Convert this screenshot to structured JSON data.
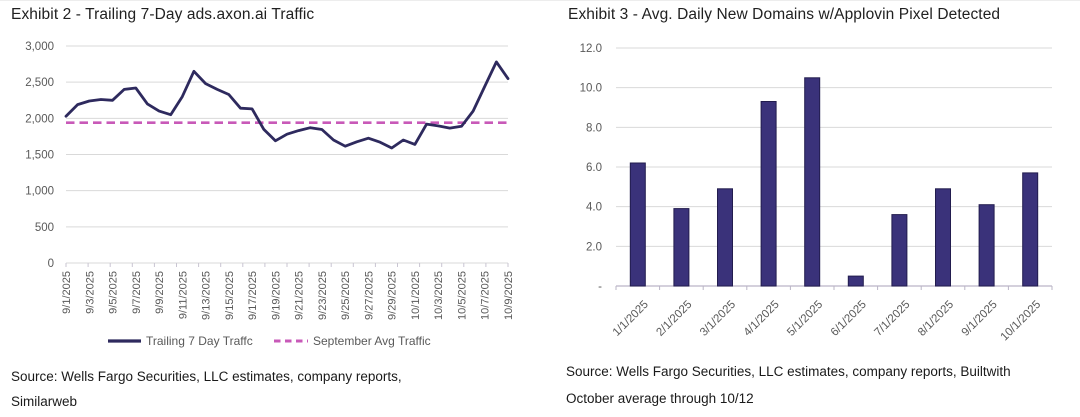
{
  "exhibit2": {
    "title": "Exhibit 2 - Trailing 7-Day ads.axon.ai Traffic",
    "source_line1": "Source: Wells Fargo Securities, LLC estimates, company reports,",
    "source_line2": "Similarweb"
  },
  "exhibit3": {
    "title": "Exhibit 3 - Avg. Daily New Domains w/Applovin Pixel Detected",
    "source_line1": "Source: Wells Fargo Securities, LLC estimates, company reports, Builtwith",
    "source_line2": "October average through 10/12"
  },
  "colors": {
    "grid": "#d9d9d9",
    "axis_text": "#595959",
    "tick": "#c9c5d2",
    "bar_axis": "#bab5c6",
    "legend_text": "#595959",
    "line_series": "#2e2a5e",
    "dashed_series": "#c859b8",
    "bar_fill": "#3a327a",
    "bar_border": "#221c4e"
  },
  "chart_data": [
    {
      "type": "line",
      "title": "Exhibit 2 - Trailing 7-Day ads.axon.ai Traffic",
      "x": [
        "9/1/2025",
        "9/2/2025",
        "9/3/2025",
        "9/4/2025",
        "9/5/2025",
        "9/6/2025",
        "9/7/2025",
        "9/8/2025",
        "9/9/2025",
        "9/10/2025",
        "9/11/2025",
        "9/12/2025",
        "9/13/2025",
        "9/14/2025",
        "9/15/2025",
        "9/16/2025",
        "9/17/2025",
        "9/18/2025",
        "9/19/2025",
        "9/20/2025",
        "9/21/2025",
        "9/22/2025",
        "9/23/2025",
        "9/24/2025",
        "9/25/2025",
        "9/26/2025",
        "9/27/2025",
        "9/28/2025",
        "9/29/2025",
        "9/30/2025",
        "10/1/2025",
        "10/2/2025",
        "10/3/2025",
        "10/4/2025",
        "10/5/2025",
        "10/6/2025",
        "10/7/2025",
        "10/8/2025",
        "10/9/2025"
      ],
      "x_label_every": 2,
      "series": [
        {
          "name": "Trailing 7 Day Traffc",
          "style": "solid",
          "values": [
            2030,
            2190,
            2240,
            2260,
            2250,
            2400,
            2420,
            2200,
            2100,
            2050,
            2300,
            2650,
            2480,
            2400,
            2330,
            2140,
            2130,
            1850,
            1690,
            1780,
            1830,
            1870,
            1845,
            1700,
            1615,
            1675,
            1725,
            1670,
            1590,
            1700,
            1640,
            1920,
            1895,
            1865,
            1890,
            2100,
            2440,
            2780,
            2550
          ]
        },
        {
          "name": "September Avg Traffic",
          "style": "dashed",
          "constant_value": 1940
        }
      ],
      "ylim": [
        0,
        3000
      ],
      "ytick_step": 500,
      "ytick_labels": [
        "0",
        "500",
        "1,000",
        "1,500",
        "2,000",
        "2,500",
        "3,000"
      ],
      "grid": true,
      "legend_position": "bottom"
    },
    {
      "type": "bar",
      "title": "Exhibit 3 - Avg. Daily New Domains w/Applovin Pixel Detected",
      "categories": [
        "1/1/2025",
        "2/1/2025",
        "3/1/2025",
        "4/1/2025",
        "5/1/2025",
        "6/1/2025",
        "7/1/2025",
        "8/1/2025",
        "9/1/2025",
        "10/1/2025"
      ],
      "values": [
        6.2,
        3.9,
        4.9,
        9.3,
        10.5,
        0.5,
        3.6,
        4.9,
        4.1,
        5.7
      ],
      "ylim": [
        0,
        12
      ],
      "ytick_step": 2,
      "ytick_labels": [
        "-",
        "2.0",
        "4.0",
        "6.0",
        "8.0",
        "10.0",
        "12.0"
      ],
      "grid": true,
      "legend_position": "none"
    }
  ]
}
